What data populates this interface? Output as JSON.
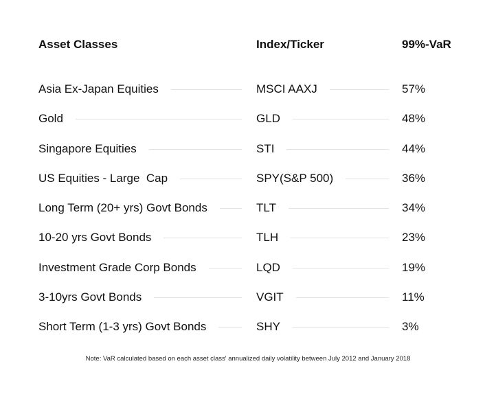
{
  "table": {
    "headers": {
      "asset": "Asset Classes",
      "ticker": "Index/Ticker",
      "var": "99%-VaR"
    },
    "rows": [
      {
        "asset": "Asia Ex-Japan Equities",
        "ticker": "MSCI AAXJ",
        "var": "57%"
      },
      {
        "asset": "Gold",
        "ticker": "GLD",
        "var": "48%"
      },
      {
        "asset": "Singapore Equities",
        "ticker": "STI",
        "var": "44%"
      },
      {
        "asset": "US Equities - Large  Cap",
        "ticker": "SPY(S&P 500)",
        "var": "36%"
      },
      {
        "asset": "Long Term (20+ yrs) Govt Bonds",
        "ticker": "TLT",
        "var": "34%"
      },
      {
        "asset": "10-20 yrs Govt Bonds",
        "ticker": "TLH",
        "var": "23%"
      },
      {
        "asset": "Investment Grade Corp Bonds",
        "ticker": "LQD",
        "var": "19%"
      },
      {
        "asset": "3-10yrs Govt Bonds",
        "ticker": "VGIT",
        "var": "11%"
      },
      {
        "asset": "Short Term (1-3 yrs) Govt Bonds",
        "ticker": "SHY",
        "var": "3%"
      }
    ]
  },
  "footnote": "Note: VaR calculated based on each asset class' annualized daily volatility between July 2012 and January 2018",
  "colors": {
    "text": "#111111",
    "leader_line": "#e2e2e2",
    "background": "#ffffff"
  }
}
